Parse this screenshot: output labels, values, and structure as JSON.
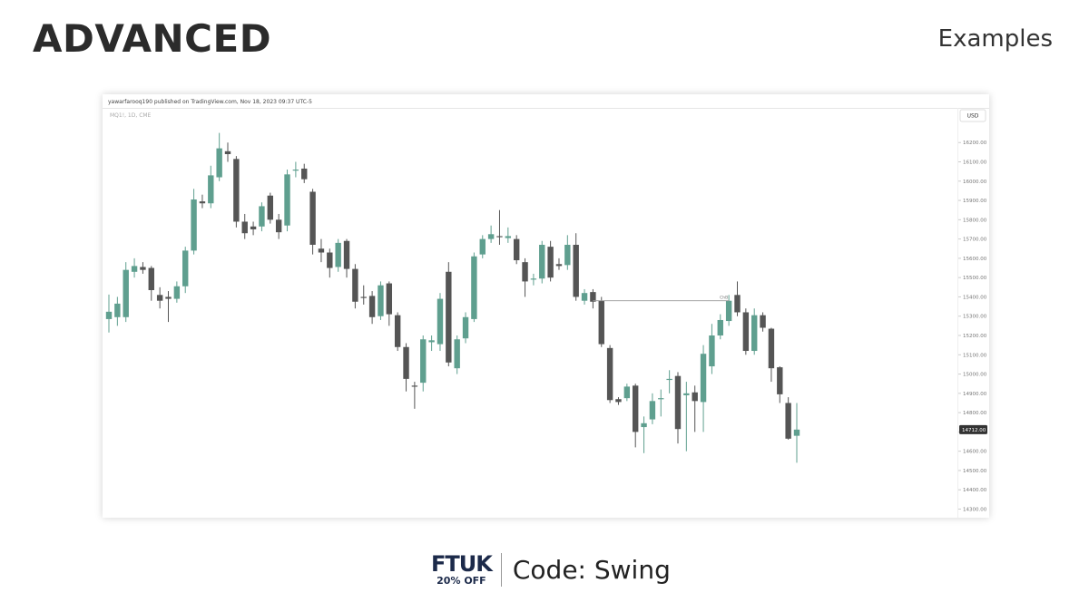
{
  "header": {
    "title": "ADVANCED",
    "subtitle": "Examples"
  },
  "footer": {
    "brand": "FTUK",
    "discount": "20% OFF",
    "code": "Code: Swing"
  },
  "chart_data": {
    "type": "candlestick",
    "publisher": "yawarfarooq190 published on TradingView.com, Nov 18, 2023 09:37 UTC-5",
    "title": "MQ1!, 1D, CME",
    "currency": "USD",
    "up_color": "#5f9f8f",
    "down_color": "#555555",
    "open": [
      15285,
      15295,
      15295,
      15530,
      15555,
      15550,
      15410,
      15400,
      15390,
      15455,
      15640,
      15895,
      15885,
      16020,
      16155,
      16115,
      15790,
      15765,
      15765,
      15925,
      15800,
      15770,
      16055,
      16065,
      15945,
      15650,
      15630,
      15555,
      15690,
      15545,
      15400,
      15405,
      15300,
      15470,
      15305,
      15140,
      14940,
      14955,
      15165,
      15155,
      15530,
      15030,
      15185,
      15285,
      15620,
      15700,
      15715,
      15705,
      15700,
      15580,
      15490,
      15495,
      15660,
      15570,
      15565,
      15670,
      15380,
      15425,
      15380,
      15135,
      14870,
      14875,
      14940,
      14725,
      14765,
      14870,
      14970,
      14990,
      14890,
      14905,
      14855,
      15040,
      15200,
      15275,
      15410,
      15320,
      15120,
      15305,
      15235,
      15035,
      14850,
      14680
    ],
    "high": [
      15412,
      15400,
      15580,
      15600,
      15580,
      15560,
      15450,
      15430,
      15480,
      15660,
      15960,
      15930,
      16080,
      16250,
      16200,
      16130,
      15830,
      15790,
      15890,
      15940,
      15830,
      16060,
      16100,
      16090,
      15960,
      15700,
      15650,
      15700,
      15700,
      15570,
      15460,
      15430,
      15480,
      15480,
      15320,
      15160,
      14960,
      15200,
      15200,
      15420,
      15580,
      15200,
      15320,
      15630,
      15720,
      15770,
      15850,
      15760,
      15720,
      15600,
      15520,
      15690,
      15690,
      15600,
      15720,
      15730,
      15440,
      15440,
      15400,
      15150,
      14880,
      14950,
      14950,
      14780,
      14900,
      14920,
      15020,
      15010,
      14960,
      14940,
      15150,
      15260,
      15310,
      15410,
      15480,
      15340,
      15340,
      15320,
      15240,
      15040,
      14880,
      14850
    ],
    "low": [
      15215,
      15250,
      15270,
      15500,
      15520,
      15380,
      15340,
      15270,
      15370,
      15420,
      15620,
      15860,
      15860,
      16000,
      16100,
      15760,
      15700,
      15720,
      15740,
      15780,
      15700,
      15740,
      16020,
      15990,
      15620,
      15580,
      15500,
      15530,
      15500,
      15340,
      15360,
      15260,
      15280,
      15250,
      15120,
      14910,
      14820,
      14910,
      15120,
      15120,
      15040,
      15000,
      15160,
      15270,
      15600,
      15680,
      15670,
      15680,
      15570,
      15400,
      15460,
      15470,
      15480,
      15540,
      15540,
      15380,
      15360,
      15340,
      15140,
      14850,
      14840,
      14860,
      14620,
      14590,
      14740,
      14780,
      14900,
      14640,
      14600,
      14700,
      14700,
      15000,
      15180,
      15250,
      15300,
      15100,
      15100,
      15220,
      14960,
      14850,
      14660,
      14540
    ],
    "close": [
      15323,
      15365,
      15540,
      15560,
      15540,
      15435,
      15380,
      15390,
      15455,
      15640,
      15905,
      15885,
      16030,
      16170,
      16140,
      15790,
      15730,
      15750,
      15870,
      15800,
      15735,
      16035,
      16060,
      16010,
      15670,
      15630,
      15550,
      15680,
      15545,
      15375,
      15395,
      15295,
      15460,
      15310,
      15140,
      14975,
      14935,
      15180,
      15175,
      15390,
      15060,
      15180,
      15295,
      15610,
      15700,
      15725,
      15710,
      15715,
      15590,
      15480,
      15495,
      15670,
      15500,
      15560,
      15670,
      15400,
      15420,
      15375,
      15155,
      14865,
      14855,
      14935,
      14700,
      14745,
      14860,
      14875,
      14975,
      14715,
      14900,
      14860,
      15105,
      15200,
      15280,
      15380,
      15320,
      15120,
      15305,
      15240,
      15030,
      14895,
      14665,
      14712
    ],
    "last_price": {
      "value": 14712,
      "label": "14712.00"
    },
    "level": {
      "value": 15380,
      "start": 57,
      "end": 73,
      "label": "ChB"
    },
    "ylim": [
      14260,
      16375
    ],
    "yticks": [
      {
        "value": 14300,
        "label": "14300.00"
      },
      {
        "value": 14400,
        "label": "14400.00"
      },
      {
        "value": 14500,
        "label": "14500.00"
      },
      {
        "value": 14600,
        "label": "14600.00"
      },
      {
        "value": 14700,
        "label": "14700.00"
      },
      {
        "value": 14800,
        "label": "14800.00"
      },
      {
        "value": 14900,
        "label": "14900.00"
      },
      {
        "value": 15000,
        "label": "15000.00"
      },
      {
        "value": 15100,
        "label": "15100.00"
      },
      {
        "value": 15200,
        "label": "15200.00"
      },
      {
        "value": 15300,
        "label": "15300.00"
      },
      {
        "value": 15400,
        "label": "15400.00"
      },
      {
        "value": 15500,
        "label": "15500.00"
      },
      {
        "value": 15600,
        "label": "15600.00"
      },
      {
        "value": 15700,
        "label": "15700.00"
      },
      {
        "value": 15800,
        "label": "15800.00"
      },
      {
        "value": 15900,
        "label": "15900.00"
      },
      {
        "value": 16000,
        "label": "16000.00"
      },
      {
        "value": 16100,
        "label": "16100.00"
      },
      {
        "value": 16200,
        "label": "16200.00"
      }
    ]
  }
}
